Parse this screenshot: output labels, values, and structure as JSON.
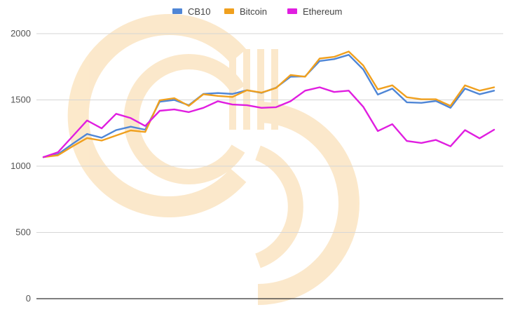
{
  "chart_data": {
    "type": "line",
    "title": "",
    "xlabel": "",
    "ylabel": "",
    "ylim": [
      0,
      2000
    ],
    "yticks": [
      0,
      500,
      1000,
      1500,
      2000
    ],
    "grid": true,
    "legend_position": "top-center",
    "watermark": "coinbase-logo",
    "x": [
      1,
      2,
      3,
      4,
      5,
      6,
      7,
      8,
      9,
      10,
      11,
      12,
      13,
      14,
      15,
      16,
      17,
      18,
      19,
      20,
      21,
      22,
      23,
      24,
      25,
      26,
      27,
      28,
      29,
      30,
      31,
      32
    ],
    "series": [
      {
        "name": "CB10",
        "color": "#4f86d6",
        "values": [
          1068,
          1090,
          1168,
          1243,
          1215,
          1272,
          1298,
          1275,
          1487,
          1500,
          1460,
          1545,
          1552,
          1545,
          1573,
          1553,
          1592,
          1675,
          1678,
          1793,
          1808,
          1840,
          1730,
          1540,
          1585,
          1482,
          1478,
          1492,
          1440,
          1585,
          1543,
          1570
        ]
      },
      {
        "name": "Bitcoin",
        "color": "#f0a01e",
        "values": [
          1068,
          1082,
          1150,
          1212,
          1193,
          1232,
          1270,
          1258,
          1497,
          1513,
          1455,
          1543,
          1530,
          1522,
          1573,
          1555,
          1590,
          1688,
          1675,
          1812,
          1825,
          1865,
          1760,
          1580,
          1610,
          1520,
          1505,
          1505,
          1455,
          1610,
          1570,
          1595
        ]
      },
      {
        "name": "Ethereum",
        "color": "#e01ee0",
        "values": [
          1068,
          1105,
          1225,
          1345,
          1285,
          1395,
          1363,
          1303,
          1418,
          1428,
          1408,
          1440,
          1490,
          1465,
          1460,
          1440,
          1445,
          1490,
          1570,
          1595,
          1560,
          1570,
          1448,
          1265,
          1317,
          1190,
          1175,
          1198,
          1150,
          1272,
          1210,
          1275
        ]
      }
    ]
  }
}
